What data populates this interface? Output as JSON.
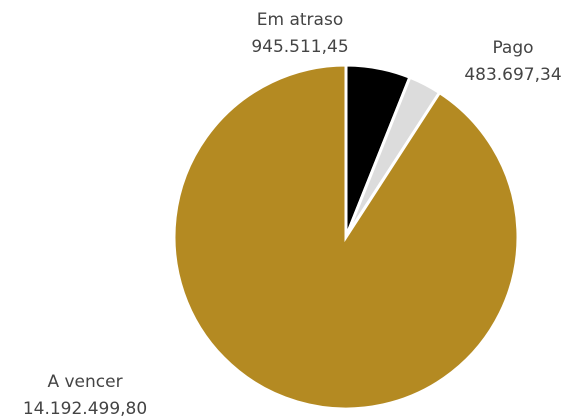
{
  "chart_data": {
    "type": "pie",
    "categories": [
      "Em atraso",
      "Pago",
      "A vencer"
    ],
    "values": [
      945511.45,
      483697.34,
      14192499.8
    ],
    "value_labels": [
      "945.511,45",
      "483.697,34",
      "14.192.499,80"
    ],
    "colors": [
      "#000000",
      "#dcdcdc",
      "#b48a22"
    ]
  }
}
